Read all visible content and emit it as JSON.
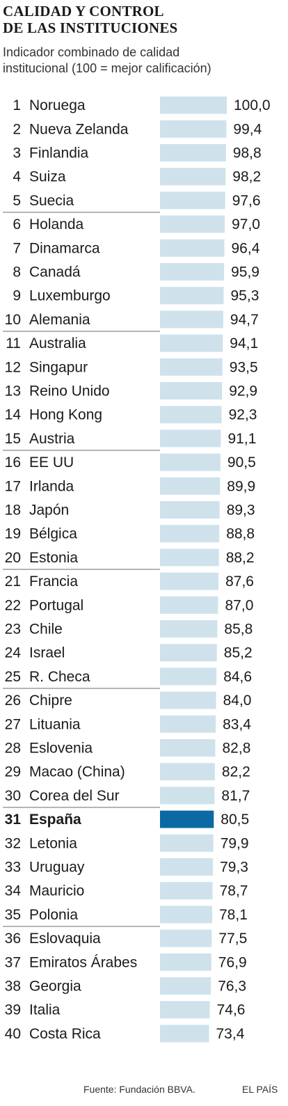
{
  "header": {
    "title_lines": [
      "Calidad y control",
      "de las instituciones"
    ],
    "subtitle_lines": [
      "Indicador combinado de calidad",
      "institucional (100 = mejor calificación)"
    ]
  },
  "chart_data": {
    "type": "bar",
    "orientation": "horizontal",
    "title": "Calidad y control de las instituciones",
    "subtitle": "Indicador combinado de calidad institucional (100 = mejor calificación)",
    "ranks": [
      "1",
      "2",
      "3",
      "4",
      "5",
      "6",
      "7",
      "8",
      "9",
      "10",
      "11",
      "12",
      "13",
      "14",
      "15",
      "16",
      "17",
      "18",
      "19",
      "20",
      "21",
      "22",
      "23",
      "24",
      "25",
      "26",
      "27",
      "28",
      "29",
      "30",
      "31",
      "32",
      "33",
      "34",
      "35",
      "36",
      "37",
      "38",
      "39",
      "40"
    ],
    "categories": [
      "Noruega",
      "Nueva Zelanda",
      "Finlandia",
      "Suiza",
      "Suecia",
      "Holanda",
      "Dinamarca",
      "Canadá",
      "Luxemburgo",
      "Alemania",
      "Australia",
      "Singapur",
      "Reino Unido",
      "Hong Kong",
      "Austria",
      "EE UU",
      "Irlanda",
      "Japón",
      "Bélgica",
      "Estonia",
      "Francia",
      "Portugal",
      "Chile",
      "Israel",
      "R. Checa",
      "Chipre",
      "Lituania",
      "Eslovenia",
      "Macao (China)",
      "Corea del Sur",
      "España",
      "Letonia",
      "Uruguay",
      "Mauricio",
      "Polonia",
      "Eslovaquia",
      "Emiratos Árabes",
      "Georgia",
      "Italia",
      "Costa Rica"
    ],
    "values": [
      100.0,
      99.4,
      98.8,
      98.2,
      97.6,
      97.0,
      96.4,
      95.9,
      95.3,
      94.7,
      94.1,
      93.5,
      92.9,
      92.3,
      91.1,
      90.5,
      89.9,
      89.3,
      88.8,
      88.2,
      87.6,
      87.0,
      85.8,
      85.2,
      84.6,
      84.0,
      83.4,
      82.8,
      82.2,
      81.7,
      80.5,
      79.9,
      79.3,
      78.7,
      78.1,
      77.5,
      76.9,
      76.3,
      74.6,
      73.4
    ],
    "value_labels": [
      "100,0",
      "99,4",
      "98,8",
      "98,2",
      "97,6",
      "97,0",
      "96,4",
      "95,9",
      "95,3",
      "94,7",
      "94,1",
      "93,5",
      "92,9",
      "92,3",
      "91,1",
      "90,5",
      "89,9",
      "89,3",
      "88,8",
      "88,2",
      "87,6",
      "87,0",
      "85,8",
      "85,2",
      "84,6",
      "84,0",
      "83,4",
      "82,8",
      "82,2",
      "81,7",
      "80,5",
      "79,9",
      "79,3",
      "78,7",
      "78,1",
      "77,5",
      "76,9",
      "76,3",
      "74,6",
      "73,4"
    ],
    "highlight_index": 30,
    "group_size": 5,
    "xlim": [
      0,
      100
    ],
    "colors": {
      "bar": "#cfe2ec",
      "highlight": "#0b6aa3",
      "separator": "#6b6b6b"
    }
  },
  "footer": {
    "source": "Fuente: Fundación BBVA.",
    "brand": "EL PAÍS"
  }
}
